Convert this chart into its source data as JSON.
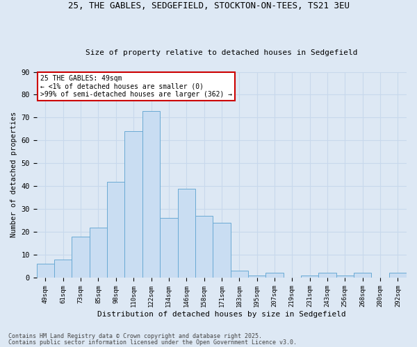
{
  "title1": "25, THE GABLES, SEDGEFIELD, STOCKTON-ON-TEES, TS21 3EU",
  "title2": "Size of property relative to detached houses in Sedgefield",
  "xlabel": "Distribution of detached houses by size in Sedgefield",
  "ylabel": "Number of detached properties",
  "categories": [
    "49sqm",
    "61sqm",
    "73sqm",
    "85sqm",
    "98sqm",
    "110sqm",
    "122sqm",
    "134sqm",
    "146sqm",
    "158sqm",
    "171sqm",
    "183sqm",
    "195sqm",
    "207sqm",
    "219sqm",
    "231sqm",
    "243sqm",
    "256sqm",
    "268sqm",
    "280sqm",
    "292sqm"
  ],
  "values": [
    6,
    8,
    18,
    22,
    42,
    64,
    73,
    26,
    39,
    27,
    24,
    3,
    1,
    2,
    0,
    1,
    2,
    1,
    2,
    0,
    2
  ],
  "bar_color": "#c9ddf2",
  "bar_edge_color": "#6aaad4",
  "annotation_text": "25 THE GABLES: 49sqm\n← <1% of detached houses are smaller (0)\n>99% of semi-detached houses are larger (362) →",
  "annotation_box_color": "#ffffff",
  "annotation_box_edge": "#cc0000",
  "grid_color": "#c8d8ec",
  "bg_color": "#dde8f4",
  "footer1": "Contains HM Land Registry data © Crown copyright and database right 2025.",
  "footer2": "Contains public sector information licensed under the Open Government Licence v3.0.",
  "ylim": [
    0,
    90
  ],
  "yticks": [
    0,
    10,
    20,
    30,
    40,
    50,
    60,
    70,
    80,
    90
  ]
}
